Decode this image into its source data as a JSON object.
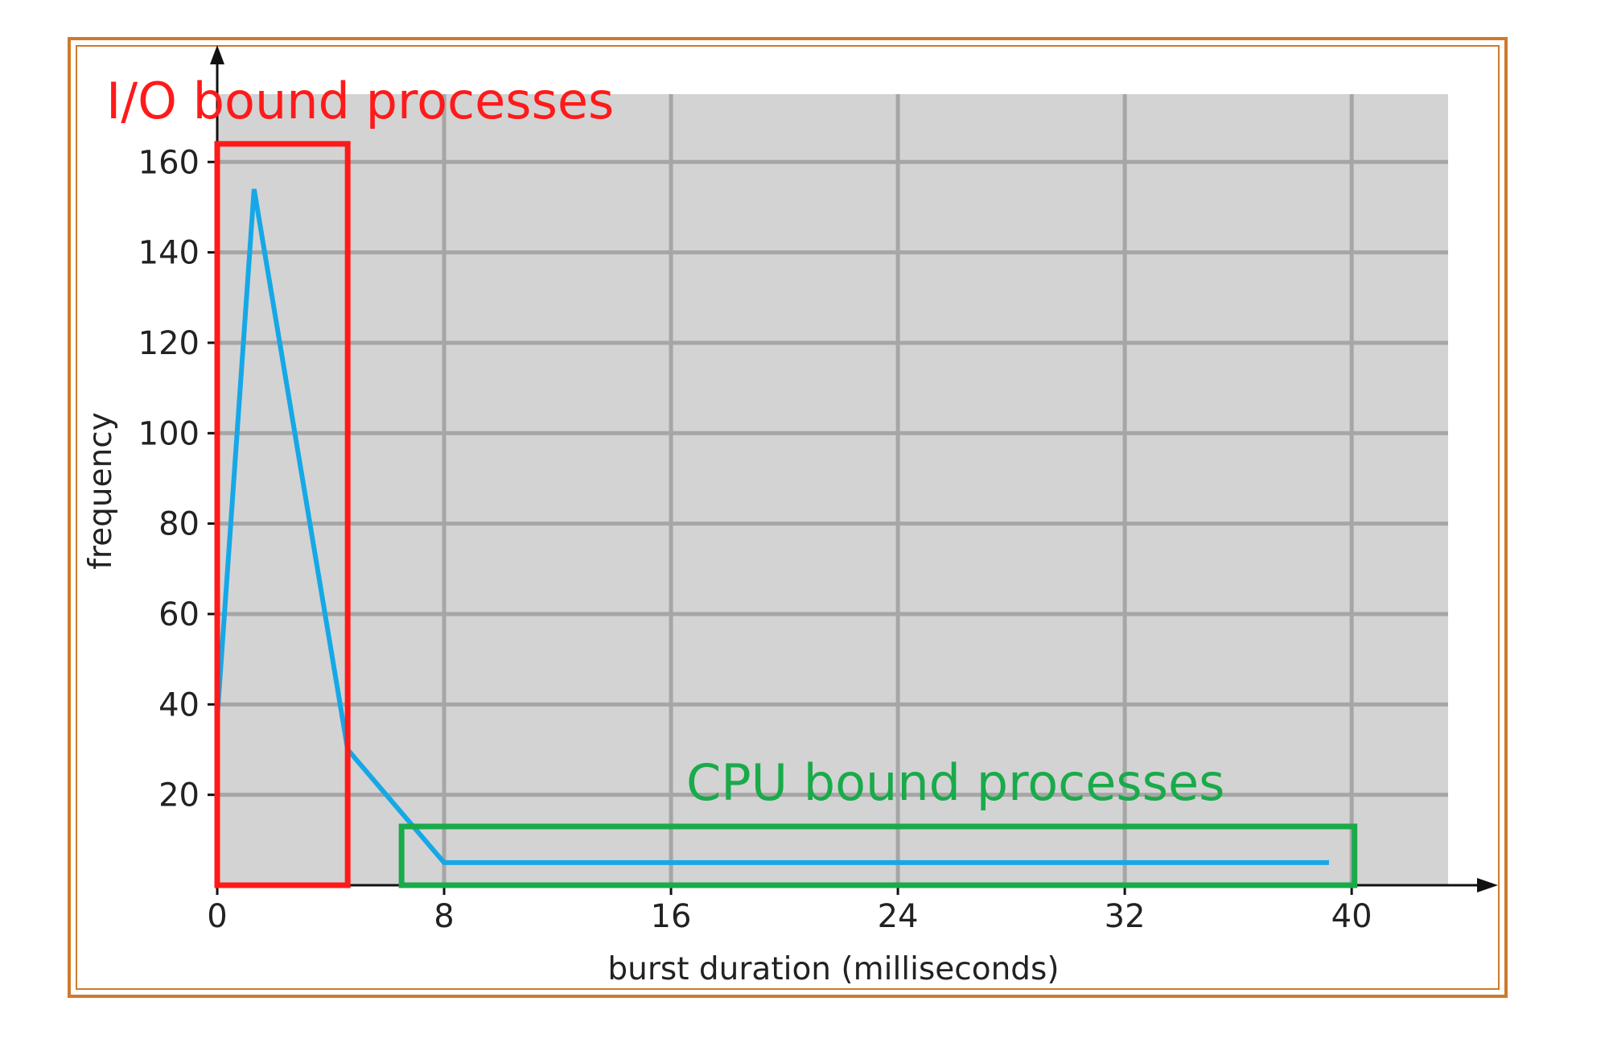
{
  "chart_data": {
    "type": "line",
    "title": "",
    "xlabel": "burst duration (milliseconds)",
    "ylabel": "frequency",
    "xlim": [
      0,
      43.4
    ],
    "ylim": [
      0,
      175
    ],
    "x_ticks": [
      0,
      8,
      16,
      24,
      32,
      40
    ],
    "y_ticks": [
      20,
      40,
      60,
      80,
      100,
      120,
      140,
      160
    ],
    "grid": true,
    "legend": "none",
    "series": [
      {
        "color": "#16a8e6",
        "x": [
          0,
          1.3,
          4.6,
          8,
          39.2
        ],
        "y": [
          37,
          154,
          30,
          5,
          5
        ]
      }
    ],
    "annotations": [
      {
        "text": "I/O bound processes",
        "color": "#ff1a1a",
        "box_x": [
          0,
          4.6
        ],
        "box_y": [
          0,
          164
        ]
      },
      {
        "text": "CPU bound processes",
        "color": "#1aaa4a",
        "box_x": [
          6.5,
          40.1
        ],
        "box_y": [
          0,
          13
        ]
      }
    ],
    "colors": {
      "frame": "#cf7a2a",
      "plot_bg": "#d3d3d3",
      "grid": "#a6a6a6",
      "axis": "#111111"
    }
  }
}
